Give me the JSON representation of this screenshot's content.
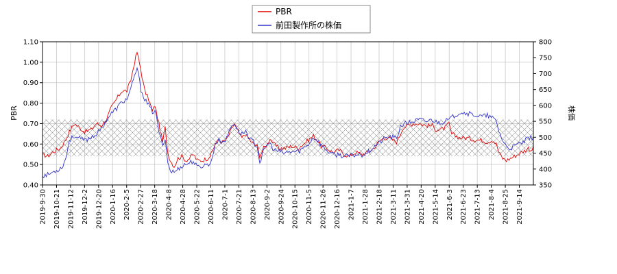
{
  "chart_data": {
    "type": "line",
    "title": "",
    "xlabel": "",
    "ylabel_left": "PBR",
    "ylabel_right": "株価",
    "ylim_left": [
      0.4,
      1.1
    ],
    "ylim_right": [
      350,
      800
    ],
    "yticks_left": [
      "0.40",
      "0.50",
      "0.60",
      "0.70",
      "0.80",
      "0.90",
      "1.00",
      "1.10"
    ],
    "yticks_right": [
      "350",
      "400",
      "450",
      "500",
      "550",
      "600",
      "650",
      "700",
      "750",
      "800"
    ],
    "xticks": [
      "2019-9-30",
      "2019-10-21",
      "2019-11-12",
      "2019-12-2",
      "2019-12-20",
      "2020-1-16",
      "2020-2-5",
      "2020-2-27",
      "2020-3-18",
      "2020-4-8",
      "2020-4-28",
      "2020-5-22",
      "2020-6-11",
      "2020-7-1",
      "2020-7-21",
      "2020-8-13",
      "2020-9-2",
      "2020-9-24",
      "2020-10-15",
      "2020-11-5",
      "2020-11-26",
      "2020-12-16",
      "2021-1-7",
      "2021-1-28",
      "2021-2-18",
      "2021-3-11",
      "2021-3-31",
      "2021-4-20",
      "2021-5-14",
      "2021-6-3",
      "2021-6-23",
      "2021-7-13",
      "2021-8-4",
      "2021-8-25",
      "2021-9-14"
    ],
    "band_left": [
      0.54,
      0.72
    ],
    "grid": true,
    "legend_position": "top-center",
    "colors": {
      "pbr": "#e00000",
      "price": "#3333cc",
      "band": "#aaaaaa"
    },
    "series": [
      {
        "name": "PBR",
        "axis": "left",
        "keypoints": [
          [
            0,
            0.55
          ],
          [
            4,
            0.54
          ],
          [
            8,
            0.56
          ],
          [
            14,
            0.58
          ],
          [
            18,
            0.62
          ],
          [
            21,
            0.66
          ],
          [
            25,
            0.7
          ],
          [
            29,
            0.68
          ],
          [
            33,
            0.66
          ],
          [
            38,
            0.67
          ],
          [
            42,
            0.7
          ],
          [
            46,
            0.69
          ],
          [
            50,
            0.72
          ],
          [
            54,
            0.78
          ],
          [
            58,
            0.82
          ],
          [
            62,
            0.86
          ],
          [
            66,
            0.86
          ],
          [
            69,
            0.91
          ],
          [
            72,
            1.0
          ],
          [
            74,
            1.05
          ],
          [
            77,
            0.96
          ],
          [
            80,
            0.86
          ],
          [
            83,
            0.82
          ],
          [
            86,
            0.76
          ],
          [
            88,
            0.79
          ],
          [
            91,
            0.7
          ],
          [
            94,
            0.61
          ],
          [
            96,
            0.68
          ],
          [
            98,
            0.56
          ],
          [
            100,
            0.52
          ],
          [
            103,
            0.49
          ],
          [
            106,
            0.53
          ],
          [
            109,
            0.54
          ],
          [
            112,
            0.52
          ],
          [
            115,
            0.53
          ],
          [
            118,
            0.55
          ],
          [
            121,
            0.52
          ],
          [
            125,
            0.52
          ],
          [
            129,
            0.53
          ],
          [
            132,
            0.55
          ],
          [
            135,
            0.6
          ],
          [
            138,
            0.62
          ],
          [
            141,
            0.61
          ],
          [
            144,
            0.62
          ],
          [
            147,
            0.66
          ],
          [
            150,
            0.7
          ],
          [
            153,
            0.66
          ],
          [
            156,
            0.63
          ],
          [
            159,
            0.65
          ],
          [
            162,
            0.62
          ],
          [
            165,
            0.6
          ],
          [
            168,
            0.59
          ],
          [
            170,
            0.54
          ],
          [
            173,
            0.58
          ],
          [
            176,
            0.6
          ],
          [
            178,
            0.63
          ],
          [
            181,
            0.6
          ],
          [
            185,
            0.58
          ],
          [
            190,
            0.58
          ],
          [
            195,
            0.59
          ],
          [
            200,
            0.58
          ],
          [
            204,
            0.6
          ],
          [
            208,
            0.62
          ],
          [
            212,
            0.64
          ],
          [
            215,
            0.62
          ],
          [
            218,
            0.59
          ],
          [
            222,
            0.58
          ],
          [
            227,
            0.56
          ],
          [
            232,
            0.57
          ],
          [
            236,
            0.55
          ],
          [
            240,
            0.54
          ],
          [
            245,
            0.56
          ],
          [
            250,
            0.55
          ],
          [
            255,
            0.56
          ],
          [
            259,
            0.58
          ],
          [
            263,
            0.61
          ],
          [
            267,
            0.63
          ],
          [
            270,
            0.63
          ],
          [
            274,
            0.62
          ],
          [
            277,
            0.61
          ],
          [
            280,
            0.65
          ],
          [
            282,
            0.68
          ],
          [
            286,
            0.69
          ],
          [
            290,
            0.7
          ],
          [
            295,
            0.7
          ],
          [
            300,
            0.69
          ],
          [
            305,
            0.69
          ],
          [
            308,
            0.67
          ],
          [
            312,
            0.67
          ],
          [
            315,
            0.68
          ],
          [
            318,
            0.7
          ],
          [
            320,
            0.65
          ],
          [
            323,
            0.64
          ],
          [
            327,
            0.63
          ],
          [
            332,
            0.63
          ],
          [
            338,
            0.62
          ],
          [
            343,
            0.62
          ],
          [
            348,
            0.61
          ],
          [
            352,
            0.62
          ],
          [
            355,
            0.6
          ],
          [
            357,
            0.56
          ],
          [
            360,
            0.53
          ],
          [
            363,
            0.52
          ],
          [
            366,
            0.53
          ],
          [
            369,
            0.54
          ],
          [
            372,
            0.55
          ],
          [
            375,
            0.56
          ],
          [
            378,
            0.57
          ],
          [
            380,
            0.58
          ],
          [
            382,
            0.57
          ],
          [
            384,
            0.58
          ]
        ]
      },
      {
        "name": "前田製作所の株価",
        "axis": "right",
        "keypoints": [
          [
            0,
            380
          ],
          [
            4,
            382
          ],
          [
            8,
            390
          ],
          [
            12,
            398
          ],
          [
            15,
            405
          ],
          [
            18,
            430
          ],
          [
            21,
            490
          ],
          [
            25,
            505
          ],
          [
            29,
            495
          ],
          [
            33,
            490
          ],
          [
            38,
            500
          ],
          [
            42,
            510
          ],
          [
            46,
            525
          ],
          [
            50,
            555
          ],
          [
            54,
            575
          ],
          [
            58,
            590
          ],
          [
            62,
            610
          ],
          [
            66,
            620
          ],
          [
            69,
            650
          ],
          [
            72,
            690
          ],
          [
            74,
            720
          ],
          [
            77,
            650
          ],
          [
            80,
            620
          ],
          [
            83,
            600
          ],
          [
            86,
            580
          ],
          [
            88,
            585
          ],
          [
            91,
            520
          ],
          [
            94,
            470
          ],
          [
            96,
            500
          ],
          [
            98,
            420
          ],
          [
            100,
            395
          ],
          [
            103,
            390
          ],
          [
            106,
            400
          ],
          [
            109,
            410
          ],
          [
            112,
            415
          ],
          [
            115,
            420
          ],
          [
            118,
            425
          ],
          [
            121,
            405
          ],
          [
            125,
            410
          ],
          [
            129,
            415
          ],
          [
            132,
            420
          ],
          [
            135,
            480
          ],
          [
            138,
            490
          ],
          [
            141,
            485
          ],
          [
            144,
            495
          ],
          [
            147,
            530
          ],
          [
            150,
            545
          ],
          [
            153,
            520
          ],
          [
            156,
            510
          ],
          [
            159,
            520
          ],
          [
            162,
            495
          ],
          [
            165,
            485
          ],
          [
            168,
            470
          ],
          [
            170,
            420
          ],
          [
            173,
            455
          ],
          [
            176,
            480
          ],
          [
            178,
            480
          ],
          [
            181,
            460
          ],
          [
            185,
            455
          ],
          [
            190,
            450
          ],
          [
            195,
            455
          ],
          [
            200,
            455
          ],
          [
            204,
            465
          ],
          [
            208,
            478
          ],
          [
            212,
            500
          ],
          [
            215,
            490
          ],
          [
            218,
            475
          ],
          [
            222,
            460
          ],
          [
            227,
            445
          ],
          [
            232,
            445
          ],
          [
            236,
            440
          ],
          [
            240,
            440
          ],
          [
            245,
            445
          ],
          [
            250,
            445
          ],
          [
            255,
            455
          ],
          [
            259,
            470
          ],
          [
            263,
            480
          ],
          [
            267,
            495
          ],
          [
            270,
            500
          ],
          [
            274,
            500
          ],
          [
            277,
            495
          ],
          [
            280,
            535
          ],
          [
            282,
            540
          ],
          [
            286,
            545
          ],
          [
            290,
            550
          ],
          [
            295,
            555
          ],
          [
            300,
            550
          ],
          [
            305,
            555
          ],
          [
            308,
            548
          ],
          [
            312,
            548
          ],
          [
            315,
            550
          ],
          [
            318,
            555
          ],
          [
            320,
            560
          ],
          [
            323,
            570
          ],
          [
            327,
            580
          ],
          [
            332,
            575
          ],
          [
            338,
            570
          ],
          [
            343,
            565
          ],
          [
            348,
            568
          ],
          [
            352,
            560
          ],
          [
            355,
            550
          ],
          [
            357,
            520
          ],
          [
            360,
            490
          ],
          [
            363,
            470
          ],
          [
            366,
            465
          ],
          [
            369,
            470
          ],
          [
            372,
            478
          ],
          [
            375,
            482
          ],
          [
            378,
            490
          ],
          [
            380,
            495
          ],
          [
            382,
            498
          ],
          [
            384,
            500
          ]
        ]
      }
    ]
  }
}
